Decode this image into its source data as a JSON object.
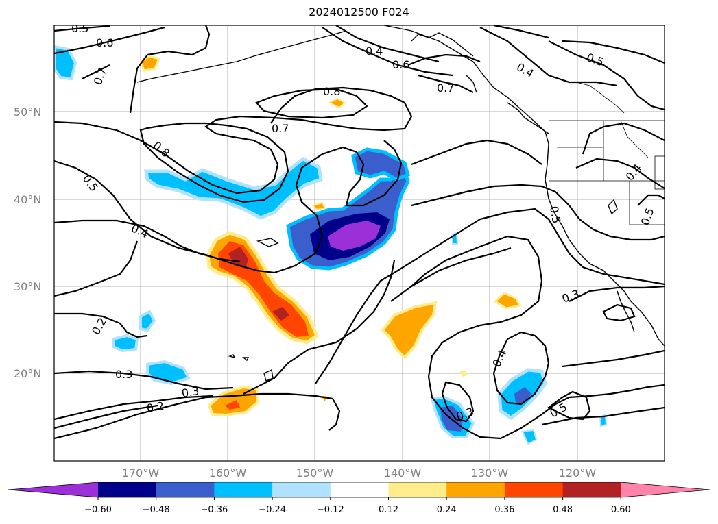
{
  "title": "2024012500 F024",
  "lat_labels": [
    "50°N",
    "40°N",
    "30°N",
    "20°N"
  ],
  "lon_labels": [
    "170°W",
    "160°W",
    "150°W",
    "140°W",
    "130°W",
    "120°W"
  ],
  "colorbar": {
    "ticks": [
      "−0.60",
      "−0.48",
      "−0.36",
      "−0.24",
      "−0.12",
      "0.12",
      "0.24",
      "0.36",
      "0.48",
      "0.60"
    ],
    "colors": [
      "#9b30d9",
      "#00008b",
      "#3a5fcd",
      "#00bfff",
      "#b0e2ff",
      "#ffffff",
      "#ffec8b",
      "#ffa500",
      "#ff4500",
      "#b22222",
      "#ff83aa"
    ]
  },
  "contour_labels": [
    "0.5",
    "0.6",
    "0.7",
    "0.8",
    "0.7",
    "0.8",
    "0.5",
    "0.4",
    "0.4",
    "0.6",
    "0.7",
    "0.4",
    "0.5",
    "0.4",
    "0.5",
    "0.5",
    "0.3",
    "0.2",
    "0.3",
    "0.3",
    "0.2",
    "0.4",
    "0.3",
    "0.5"
  ]
}
